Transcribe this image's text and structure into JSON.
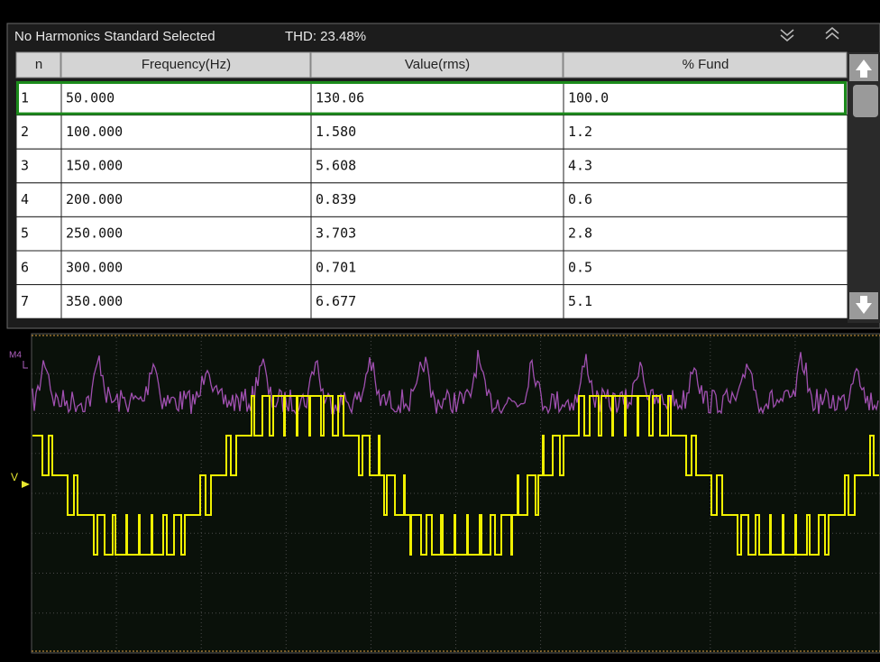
{
  "header": {
    "standard": "No Harmonics Standard Selected",
    "thd": "THD: 23.48%"
  },
  "table": {
    "columns": [
      "n",
      "Frequency(Hz)",
      "Value(rms)",
      "% Fund"
    ],
    "rows": [
      [
        "1",
        "50.000",
        "130.06",
        "100.0"
      ],
      [
        "2",
        "100.000",
        "1.580",
        "1.2"
      ],
      [
        "3",
        "150.000",
        "5.608",
        "4.3"
      ],
      [
        "4",
        "200.000",
        "0.839",
        "0.6"
      ],
      [
        "5",
        "250.000",
        "3.703",
        "2.8"
      ],
      [
        "6",
        "300.000",
        "0.701",
        "0.5"
      ],
      [
        "7",
        "350.000",
        "6.677",
        "5.1"
      ]
    ]
  },
  "channels": {
    "math": "M4",
    "voltage": "V"
  }
}
